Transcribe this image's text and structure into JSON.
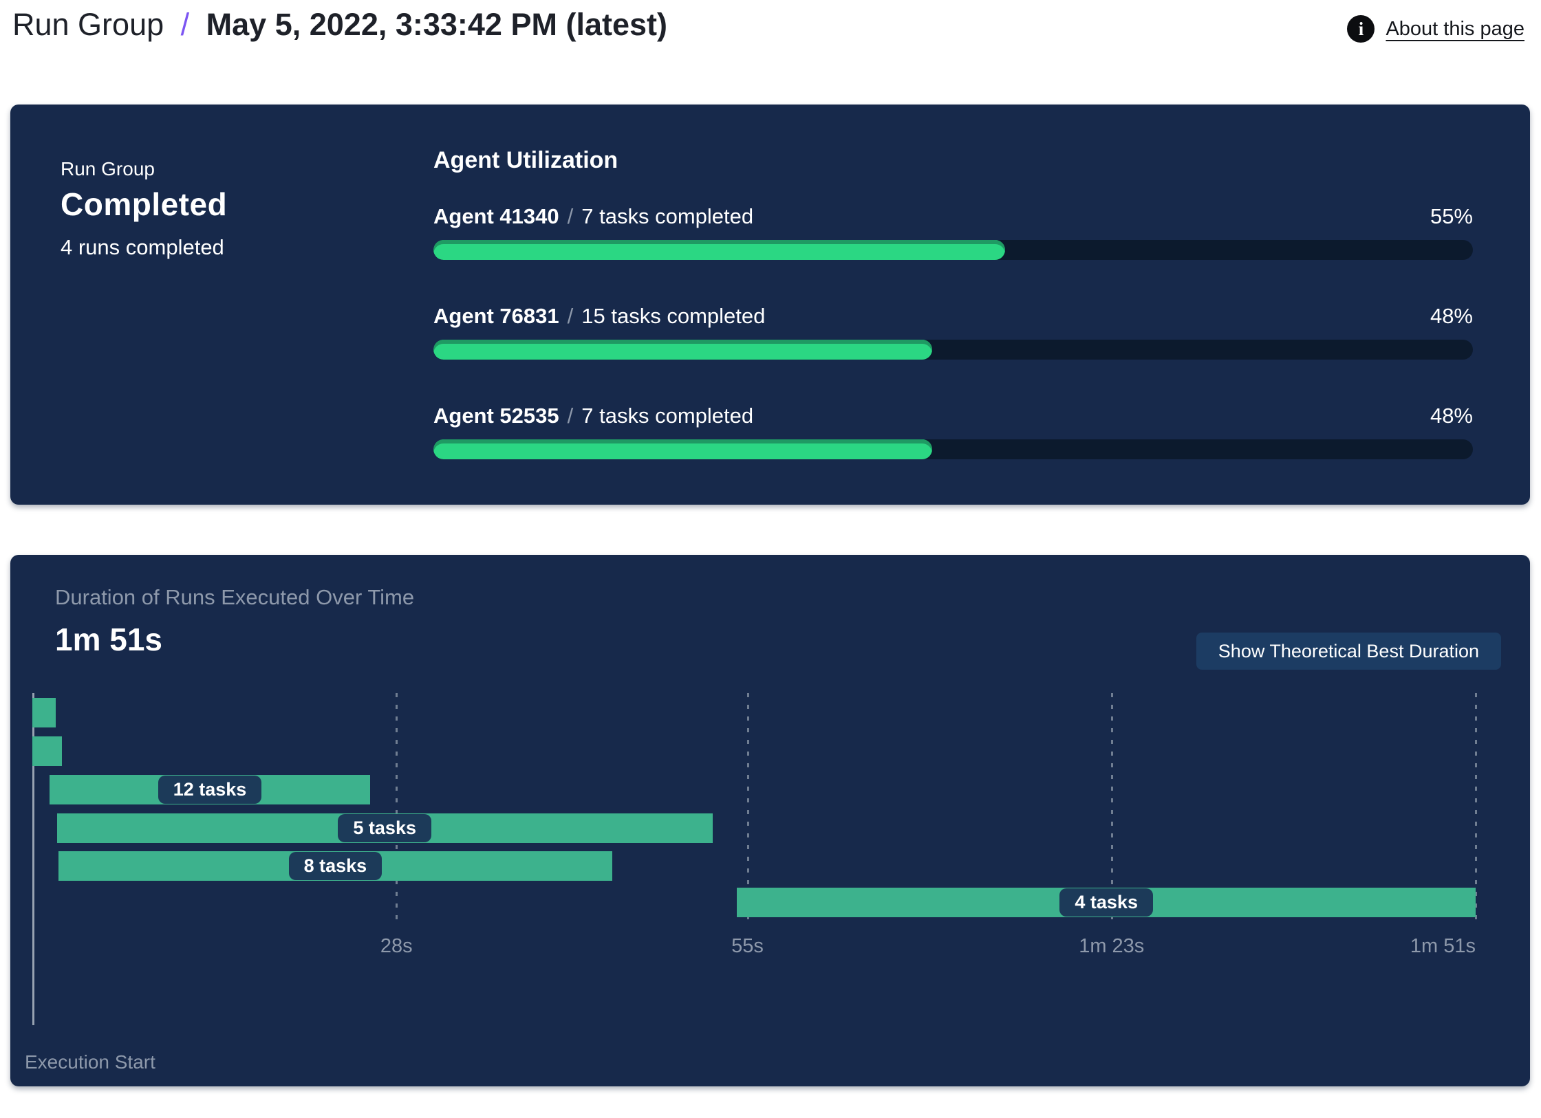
{
  "header": {
    "breadcrumb_root": "Run Group",
    "separator": "/",
    "title": "May 5, 2022, 3:33:42 PM (latest)",
    "about_link": "About this page",
    "info_icon": "i"
  },
  "colors": {
    "card_bg": "#17294b",
    "progress_track": "#0c1a2d",
    "progress_fill": "#2bd783",
    "progress_fill_edge": "#1f9a63",
    "gantt_bar": "#3db28d",
    "label_pill_bg": "#1c3a59",
    "accent_slash": "#7c55f2",
    "button_bg": "#1c3c63",
    "muted_text": "#8e99ab"
  },
  "status_card": {
    "label": "Run Group",
    "status": "Completed",
    "subtext": "4 runs completed"
  },
  "agent_utilization": {
    "title": "Agent Utilization",
    "agents": [
      {
        "name": "Agent 41340",
        "separator": "/",
        "tasks": "7 tasks completed",
        "percent": 55
      },
      {
        "name": "Agent 76831",
        "separator": "/",
        "tasks": "15 tasks completed",
        "percent": 48
      },
      {
        "name": "Agent 52535",
        "separator": "/",
        "tasks": "7 tasks completed",
        "percent": 48
      }
    ]
  },
  "duration_card": {
    "title": "Duration of Runs Executed Over Time",
    "total_duration": "1m 51s",
    "button_label": "Show Theoretical Best Duration",
    "axis_label": "Execution Start"
  },
  "chart_data": {
    "type": "gantt",
    "title": "Duration of Runs Executed Over Time",
    "total_duration_s": 111,
    "x_ticks": [
      {
        "t": 28,
        "label": "28s"
      },
      {
        "t": 55,
        "label": "55s"
      },
      {
        "t": 83,
        "label": "1m 23s"
      },
      {
        "t": 111,
        "label": "1m 51s"
      }
    ],
    "bars": [
      {
        "start_s": 0,
        "end_s": 1.8,
        "label": ""
      },
      {
        "start_s": 0,
        "end_s": 2.3,
        "label": ""
      },
      {
        "start_s": 1.3,
        "end_s": 26,
        "label": "12 tasks"
      },
      {
        "start_s": 1.9,
        "end_s": 52.3,
        "label": "5 tasks"
      },
      {
        "start_s": 2.0,
        "end_s": 44.6,
        "label": "8 tasks"
      },
      {
        "start_s": 54.2,
        "end_s": 111,
        "label": "4 tasks"
      }
    ],
    "xlabel": "Execution Start",
    "grid": "dashed-vertical",
    "legend": "none"
  }
}
